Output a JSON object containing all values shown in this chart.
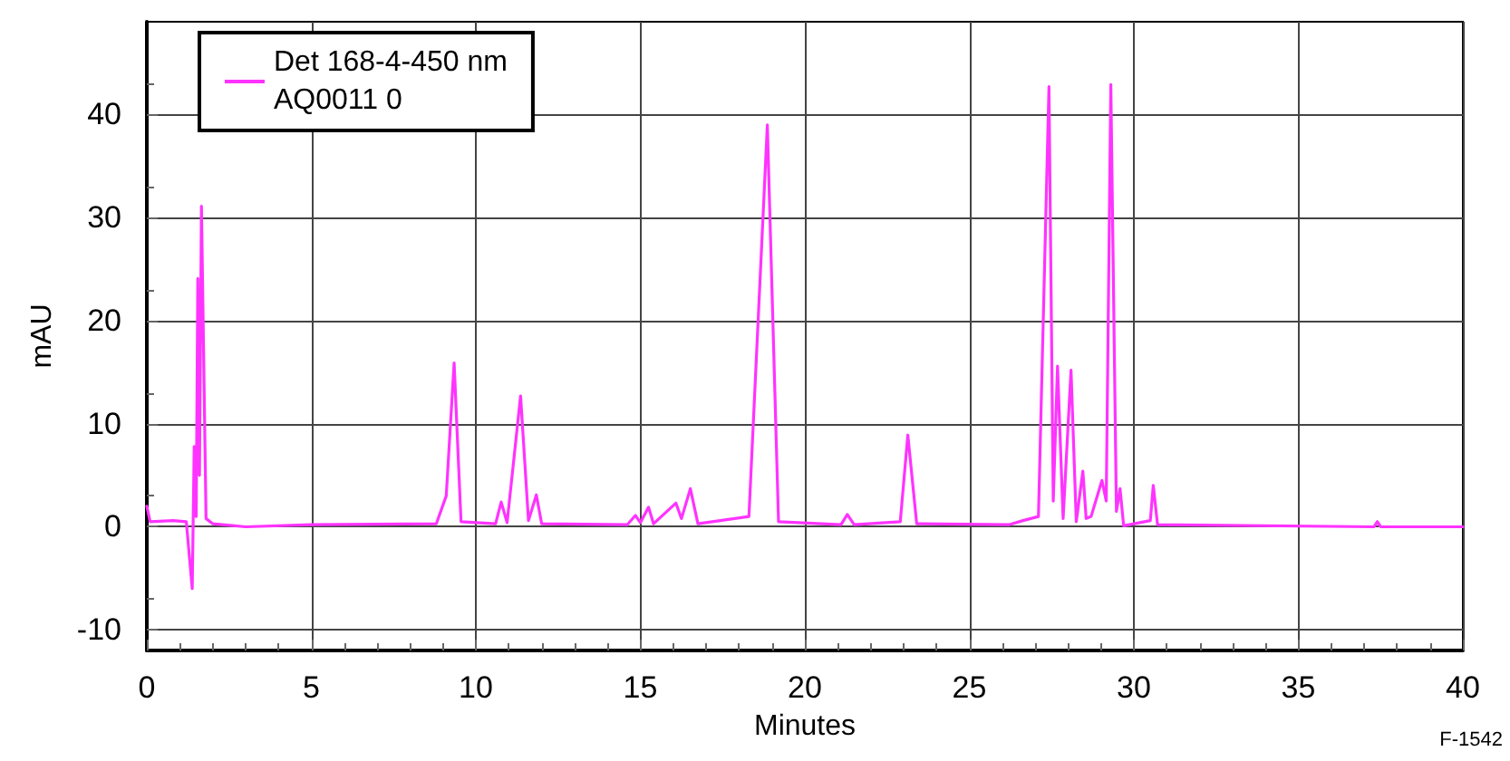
{
  "chart_data": {
    "type": "line",
    "xlabel": "Minutes",
    "ylabel": "mAU",
    "annotations": [
      "F-1542"
    ],
    "xlim": [
      0,
      40
    ],
    "xticks": [
      0,
      5,
      10,
      15,
      20,
      25,
      30,
      35,
      40
    ],
    "ylim": [
      -12,
      49
    ],
    "yticks": [
      -10,
      0,
      10,
      20,
      30,
      40
    ],
    "grid": true,
    "legend": "top left",
    "marker": "none",
    "line_style": "solid",
    "series": [
      {
        "name": "Det 168-4-450 nm\nAQ0011 0",
        "color": "#ff33ff",
        "x": [
          0,
          0.1,
          0.8,
          1.2,
          1.38,
          1.44,
          1.5,
          1.55,
          1.6,
          1.66,
          1.8,
          2.0,
          3,
          5,
          8.8,
          9.1,
          9.34,
          9.55,
          10.6,
          10.77,
          10.95,
          11.36,
          11.6,
          11.84,
          12,
          14.6,
          14.85,
          15.0,
          15.25,
          15.4,
          16.08,
          16.25,
          16.52,
          16.75,
          18.3,
          18.86,
          19.2,
          21.1,
          21.29,
          21.5,
          22.9,
          23.13,
          23.4,
          26.2,
          26.63,
          27.1,
          27.42,
          27.55,
          27.68,
          27.85,
          28.09,
          28.25,
          28.45,
          28.55,
          28.7,
          29.03,
          29.16,
          29.3,
          29.47,
          29.58,
          29.69,
          30.5,
          30.59,
          30.72,
          37.3,
          37.4,
          37.5,
          40
        ],
        "values": [
          2,
          0.5,
          0.6,
          0.5,
          -6,
          7.8,
          1,
          24.1,
          5,
          31.1,
          0.8,
          0.3,
          0,
          0.2,
          0.3,
          3,
          15.9,
          0.5,
          0.3,
          2.4,
          0.4,
          12.7,
          0.6,
          3.1,
          0.3,
          0.2,
          1.1,
          0.4,
          1.9,
          0.3,
          2.3,
          0.8,
          3.7,
          0.3,
          1,
          39,
          0.5,
          0.2,
          1.2,
          0.2,
          0.5,
          8.9,
          0.3,
          0.2,
          0.6,
          1,
          42.7,
          2.5,
          15.6,
          0.8,
          15.2,
          0.5,
          5.4,
          0.8,
          1,
          4.5,
          2.5,
          42.9,
          1.5,
          3.7,
          0.1,
          0.6,
          4,
          0.2,
          0,
          0.5,
          0,
          0
        ]
      }
    ]
  }
}
